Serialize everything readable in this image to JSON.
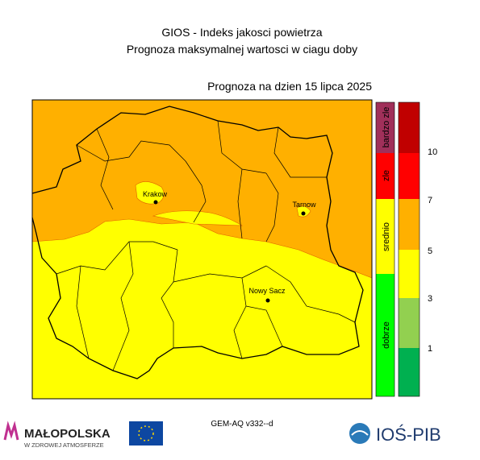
{
  "header": {
    "title": "GIOS - Indeks jakosci powietrza",
    "subtitle": "Prognoza maksymalnej wartosci w ciagu doby",
    "forecast_date": "Prognoza na dzien  15 lipca 2025"
  },
  "map": {
    "cities": [
      {
        "label": "Krakow"
      },
      {
        "label": "Tarnow"
      },
      {
        "label": "Nowy Sacz"
      }
    ]
  },
  "legend": {
    "categories": [
      "bardzo zle",
      "zle",
      "srednio",
      "dobrze"
    ],
    "scale_ticks": [
      10,
      7,
      5,
      3,
      1
    ]
  },
  "footer": {
    "model": "GEM-AQ v332--d",
    "left_logo": "MAŁOPOLSKA",
    "left_logo_tagline": "W ZDROWEJ ATMOSFERZE",
    "right_logo": "IOŚ-PIB"
  }
}
